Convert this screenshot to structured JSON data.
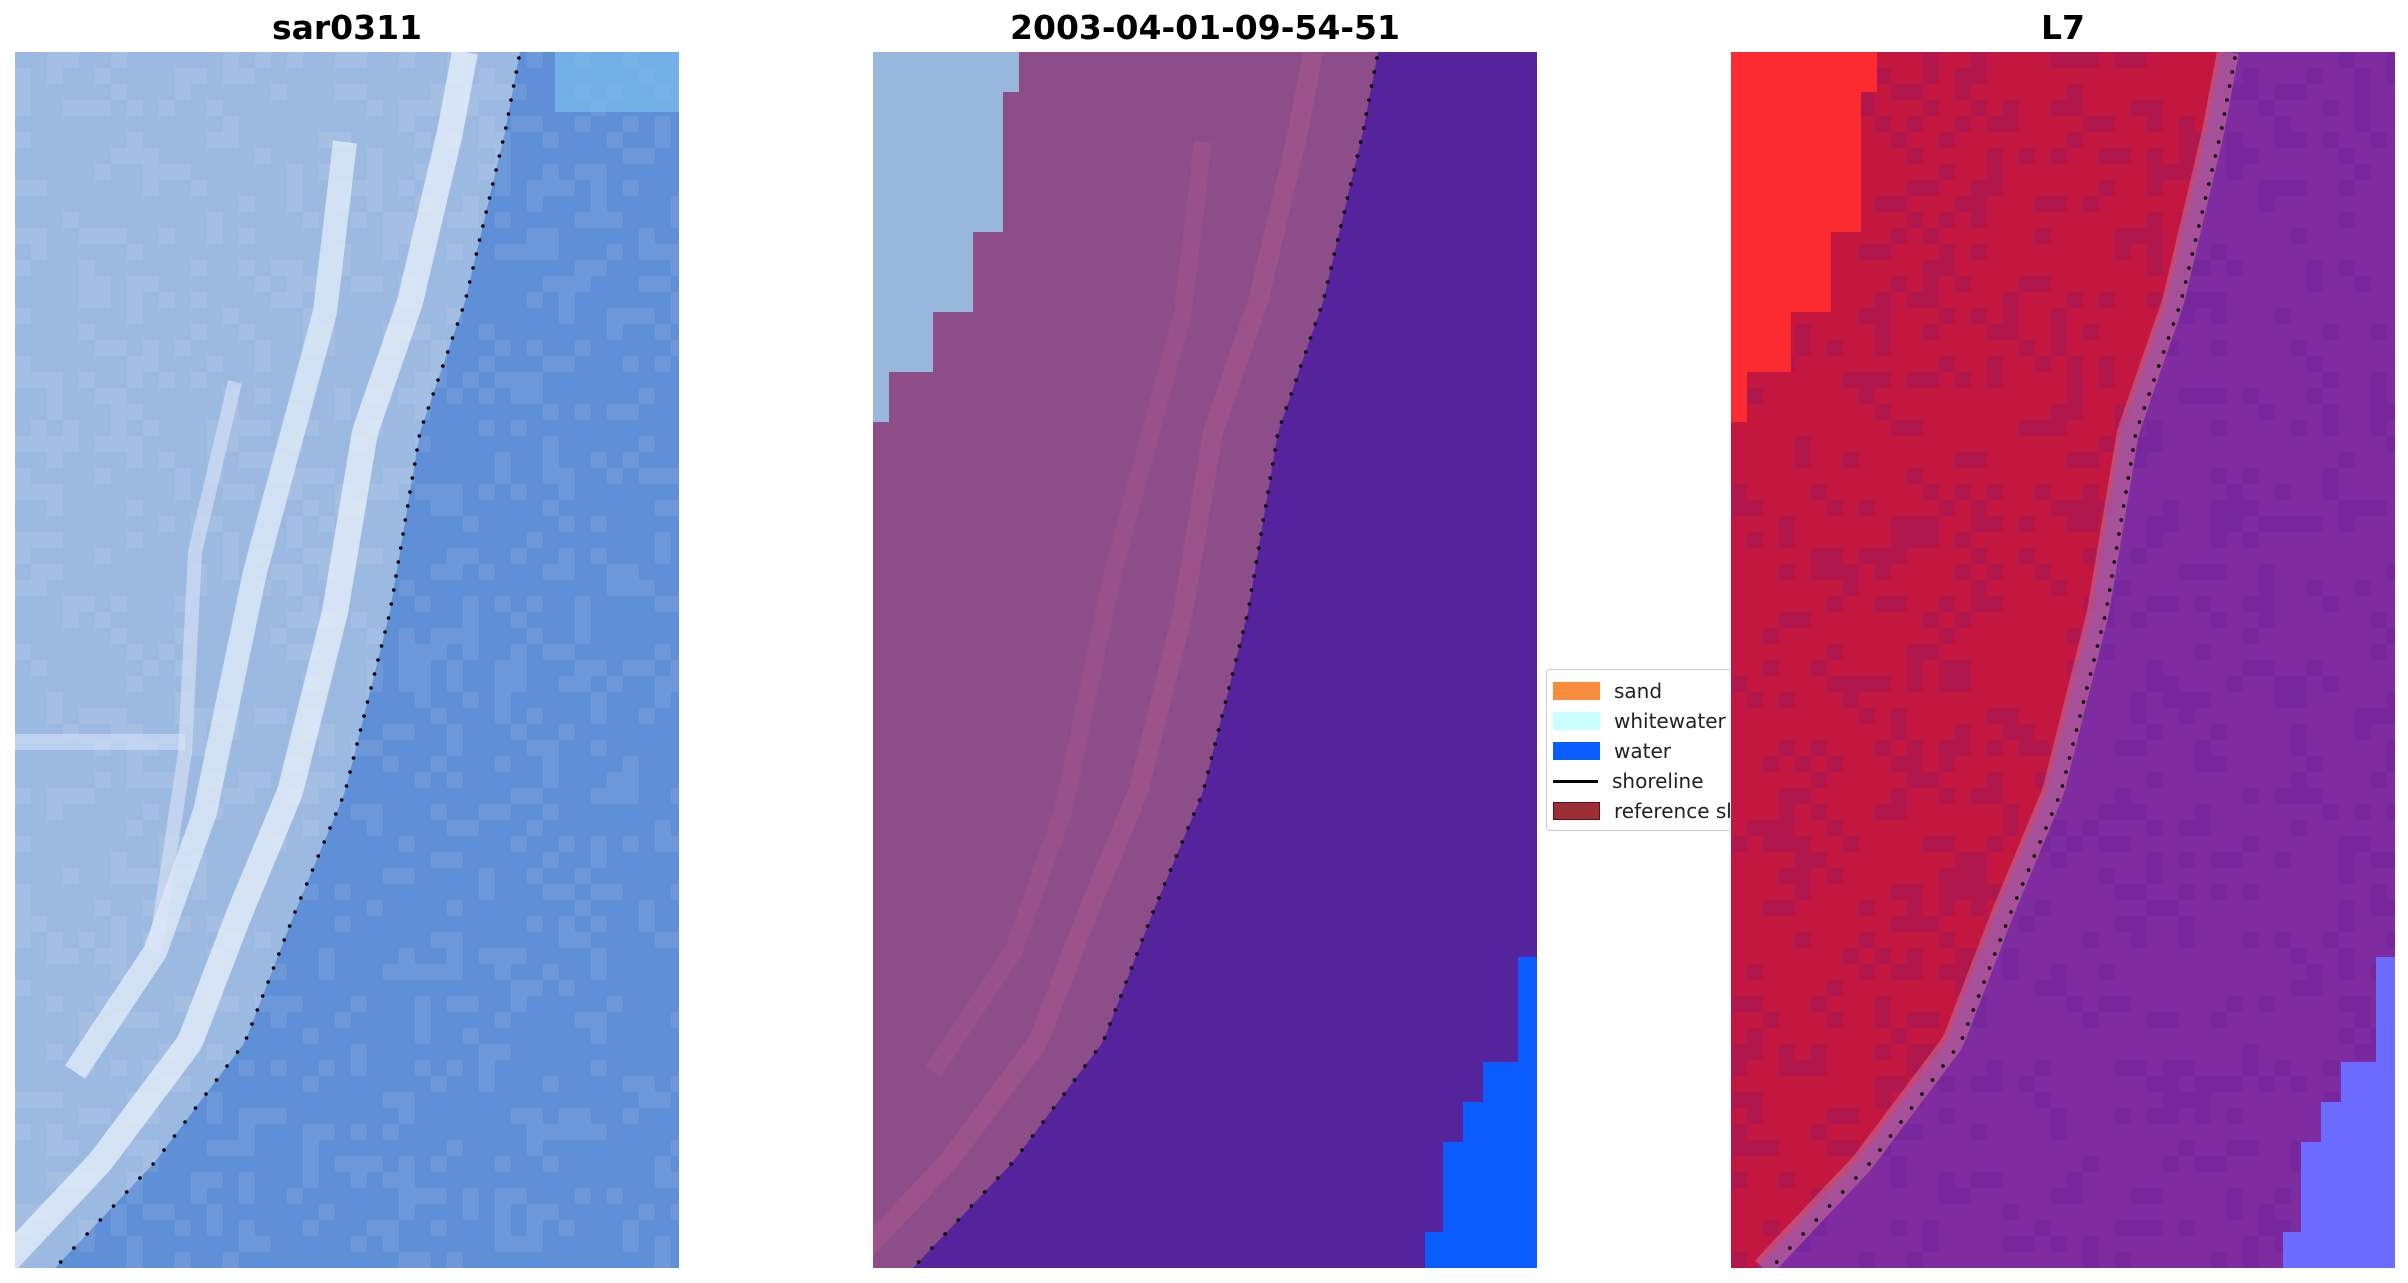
{
  "panels": [
    {
      "title": "sar0311",
      "style": "rgb"
    },
    {
      "title": "2003-04-01-09-54-51",
      "style": "classified"
    },
    {
      "title": "L7",
      "style": "mndwi"
    }
  ],
  "legend": {
    "items": [
      {
        "label": "sand",
        "color": "#f98b3c",
        "kind": "patch"
      },
      {
        "label": "whitewater",
        "color": "#c9ffff",
        "kind": "patch"
      },
      {
        "label": "water",
        "color": "#0a5cff",
        "kind": "patch"
      },
      {
        "label": "shoreline",
        "color": "#000000",
        "kind": "line"
      },
      {
        "label": "reference shoreline",
        "color": "#9b2f35",
        "kind": "patch"
      }
    ]
  },
  "colors": {
    "rgb_land": "#9cb9e2",
    "rgb_water": "#5f8fd6",
    "rgb_whitewater": "#e8f2fb",
    "class_land": "#8d4d88",
    "class_water": "#55239b",
    "class_sky": "#98b7dc",
    "class_blue": "#0a5cff",
    "mndwi_land": "#c3173f",
    "mndwi_water": "#7e2ca0",
    "mndwi_bright": "#fc2b30",
    "mndwi_blue": "#6b6bff",
    "shoreline_dots": "#000000"
  }
}
